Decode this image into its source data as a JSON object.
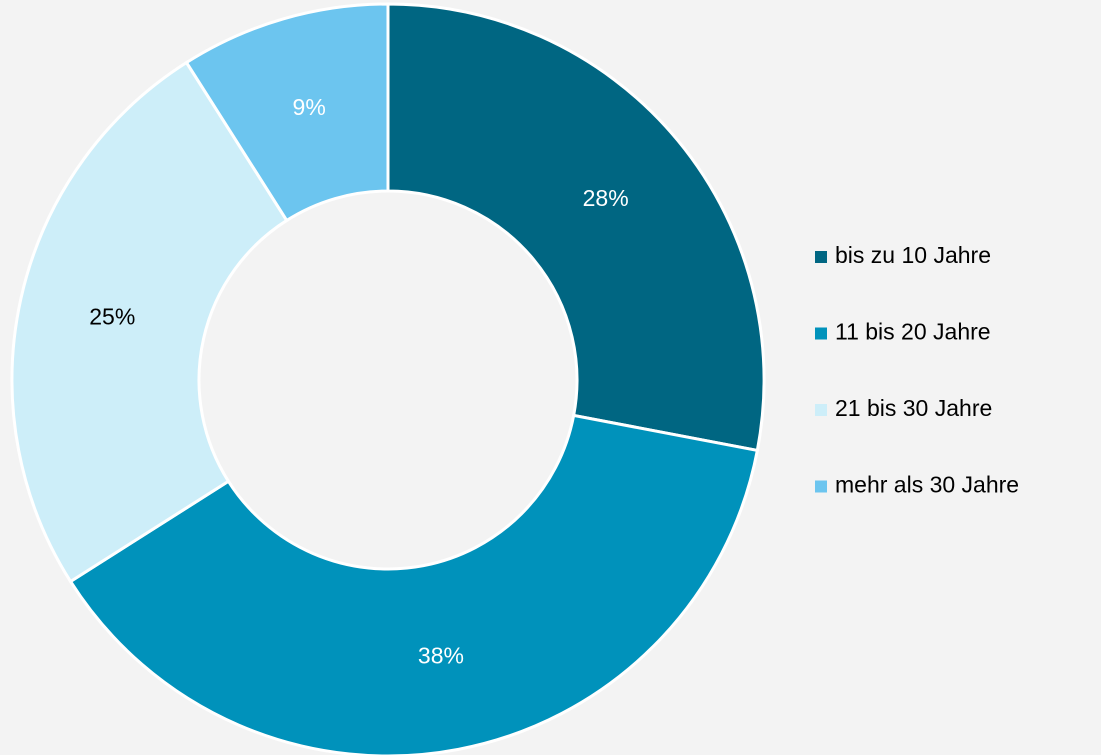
{
  "chart_data": {
    "type": "donut",
    "categories": [
      "bis zu 10 Jahre",
      "11 bis 20 Jahre",
      "21 bis 30 Jahre",
      "mehr als 30 Jahre"
    ],
    "values": [
      28,
      38,
      25,
      9
    ],
    "value_labels": [
      "28%",
      "38%",
      "25%",
      "9%"
    ],
    "colors": [
      "#006682",
      "#0092bb",
      "#cdeef9",
      "#6cc5ef"
    ],
    "legend": "right"
  }
}
